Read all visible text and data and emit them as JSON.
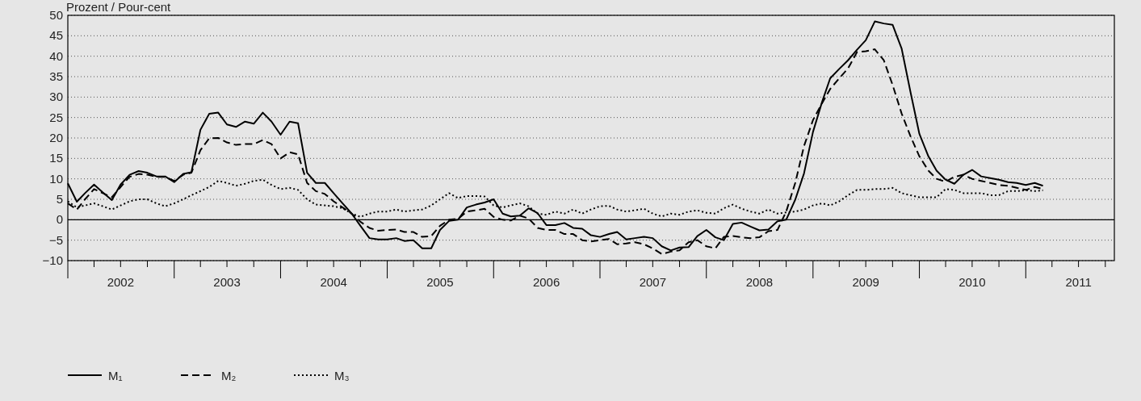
{
  "chart_data": {
    "type": "line",
    "ylabel": "Prozent / Pour-cent",
    "x": [
      "2002-01",
      "2002-02",
      "2002-03",
      "2002-04",
      "2002-05",
      "2002-06",
      "2002-07",
      "2002-08",
      "2002-09",
      "2002-10",
      "2002-11",
      "2002-12",
      "2003-01",
      "2003-02",
      "2003-03",
      "2003-04",
      "2003-05",
      "2003-06",
      "2003-07",
      "2003-08",
      "2003-09",
      "2003-10",
      "2003-11",
      "2003-12",
      "2004-01",
      "2004-02",
      "2004-03",
      "2004-04",
      "2004-05",
      "2004-06",
      "2004-07",
      "2004-08",
      "2004-09",
      "2004-10",
      "2004-11",
      "2004-12",
      "2005-01",
      "2005-02",
      "2005-03",
      "2005-04",
      "2005-05",
      "2005-06",
      "2005-07",
      "2005-08",
      "2005-09",
      "2005-10",
      "2005-11",
      "2005-12",
      "2006-01",
      "2006-02",
      "2006-03",
      "2006-04",
      "2006-05",
      "2006-06",
      "2006-07",
      "2006-08",
      "2006-09",
      "2006-10",
      "2006-11",
      "2006-12",
      "2007-01",
      "2007-02",
      "2007-03",
      "2007-04",
      "2007-05",
      "2007-06",
      "2007-07",
      "2007-08",
      "2007-09",
      "2007-10",
      "2007-11",
      "2007-12",
      "2008-01",
      "2008-02",
      "2008-03",
      "2008-04",
      "2008-05",
      "2008-06",
      "2008-07",
      "2008-08",
      "2008-09",
      "2008-10",
      "2008-11",
      "2008-12",
      "2009-01",
      "2009-02",
      "2009-03",
      "2009-04",
      "2009-05",
      "2009-06",
      "2009-07",
      "2009-08",
      "2009-09",
      "2009-10",
      "2009-11",
      "2009-12",
      "2010-01",
      "2010-02",
      "2010-03",
      "2010-04",
      "2010-05",
      "2010-06",
      "2010-07",
      "2010-08",
      "2010-09",
      "2010-10",
      "2010-11",
      "2010-12",
      "2011-01",
      "2011-02",
      "2011-03"
    ],
    "series": [
      {
        "name": "M₁",
        "color": "#000000",
        "line_style": "solid",
        "values": [
          8.9,
          4.4,
          6.5,
          8.6,
          6.7,
          4.8,
          8.6,
          11,
          11.9,
          11.5,
          10.6,
          10.6,
          9.2,
          11.2,
          11.6,
          22,
          25.9,
          26.2,
          23.3,
          22.7,
          24,
          23.5,
          26.2,
          24,
          20.8,
          24,
          23.6,
          11.5,
          9,
          9,
          6.5,
          4,
          1.5,
          -1.5,
          -4.5,
          -4.8,
          -4.8,
          -4.5,
          -5.2,
          -5,
          -7,
          -7,
          -2.5,
          -0.3,
          0,
          3,
          3.7,
          4.2,
          5,
          1.5,
          0.8,
          1,
          2.8,
          1.6,
          -1.3,
          -1.3,
          -0.8,
          -2,
          -2.2,
          -3.8,
          -4.2,
          -3.5,
          -3,
          -4.8,
          -4.5,
          -4.2,
          -4.5,
          -6.5,
          -7.5,
          -6.8,
          -6.7,
          -4,
          -2.5,
          -4.3,
          -5,
          -1,
          -0.7,
          -1.7,
          -2.6,
          -2.4,
          -0.4,
          0,
          4.9,
          11.3,
          21.5,
          28.8,
          34.6,
          36.9,
          39,
          41.6,
          43.9,
          48.5,
          48,
          47.7,
          41.9,
          31.4,
          21,
          15.5,
          12,
          9.8,
          8.8,
          11,
          12.2,
          10.6,
          10.2,
          9.8,
          9.2,
          9,
          8.5,
          9,
          8.3
        ]
      },
      {
        "name": "M₂",
        "color": "#000000",
        "line_style": "dashed",
        "values": [
          4,
          2.5,
          5,
          7.5,
          6.5,
          5.5,
          8,
          10.5,
          11.2,
          11,
          10.5,
          10.5,
          9.5,
          11,
          11.5,
          17,
          19.9,
          20,
          18.9,
          18.3,
          18.5,
          18.5,
          19.5,
          18.5,
          15,
          16.5,
          16,
          9,
          7,
          6.3,
          4.5,
          3,
          1.5,
          -0.5,
          -2,
          -2.7,
          -2.5,
          -2.4,
          -3,
          -3,
          -4.2,
          -4,
          -1.5,
          0,
          0.2,
          2,
          2.3,
          2.7,
          0.7,
          0,
          -0.2,
          1,
          0.3,
          -2,
          -2.5,
          -2.5,
          -3.5,
          -3.5,
          -5,
          -5.3,
          -5,
          -4.7,
          -6,
          -5.8,
          -5.5,
          -6,
          -7,
          -8.4,
          -7.8,
          -7.5,
          -5.5,
          -5,
          -6.5,
          -7,
          -4.2,
          -4,
          -4.3,
          -4.5,
          -4.3,
          -2.8,
          -2.5,
          2,
          9,
          18,
          24.4,
          28.5,
          32,
          34.6,
          37,
          41,
          41.2,
          41.7,
          39,
          33,
          26,
          20.5,
          15.5,
          12,
          10,
          9.3,
          10.5,
          11,
          10,
          9.5,
          9,
          8.5,
          8.3,
          7.8,
          7.3,
          8,
          7.5
        ]
      },
      {
        "name": "M₃",
        "color": "#000000",
        "line_style": "dotted",
        "values": [
          4.5,
          3,
          3.5,
          4,
          3.3,
          2.5,
          3.5,
          4.5,
          5,
          5,
          4,
          3.3,
          4,
          5,
          6,
          7,
          8,
          9.5,
          9,
          8.3,
          8.8,
          9.5,
          9.8,
          8.5,
          7.5,
          7.8,
          7.3,
          5,
          3.7,
          3.5,
          3.3,
          2.8,
          1.5,
          0.7,
          1.5,
          2,
          2,
          2.5,
          2,
          2.3,
          2.5,
          3.5,
          5,
          6.5,
          5.3,
          5.8,
          5.8,
          5.7,
          3.5,
          3,
          3.5,
          4,
          3.3,
          1.5,
          1.2,
          2,
          1.5,
          2.5,
          1.5,
          2.5,
          3.3,
          3.4,
          2.5,
          2,
          2.3,
          2.7,
          1.5,
          0.8,
          1.5,
          1.2,
          2,
          2.3,
          1.7,
          1.5,
          2.8,
          3.7,
          2.7,
          2,
          1.5,
          2.5,
          1.5,
          1.8,
          2,
          2.5,
          3.5,
          4,
          3.5,
          4.5,
          6,
          7.3,
          7.3,
          7.5,
          7.5,
          7.8,
          6.5,
          6,
          5.5,
          5.5,
          5.5,
          7.5,
          7.3,
          6.5,
          6.5,
          6.5,
          6,
          6,
          7,
          7,
          7.2,
          7,
          7.2
        ]
      }
    ],
    "xlim": [
      "2002-01",
      "2011-11"
    ],
    "xticks": [
      {
        "value": "2002-01",
        "label": null
      },
      {
        "value": "2002-04",
        "label": null
      },
      {
        "value": "2002-07",
        "label": "2002"
      },
      {
        "value": "2002-10",
        "label": null
      },
      {
        "value": "2003-01",
        "label": null
      },
      {
        "value": "2003-04",
        "label": null
      },
      {
        "value": "2003-07",
        "label": "2003"
      },
      {
        "value": "2003-10",
        "label": null
      },
      {
        "value": "2004-01",
        "label": null
      },
      {
        "value": "2004-04",
        "label": null
      },
      {
        "value": "2004-07",
        "label": "2004"
      },
      {
        "value": "2004-10",
        "label": null
      },
      {
        "value": "2005-01",
        "label": null
      },
      {
        "value": "2005-04",
        "label": null
      },
      {
        "value": "2005-07",
        "label": "2005"
      },
      {
        "value": "2005-10",
        "label": null
      },
      {
        "value": "2006-01",
        "label": null
      },
      {
        "value": "2006-04",
        "label": null
      },
      {
        "value": "2006-07",
        "label": "2006"
      },
      {
        "value": "2006-10",
        "label": null
      },
      {
        "value": "2007-01",
        "label": null
      },
      {
        "value": "2007-04",
        "label": null
      },
      {
        "value": "2007-07",
        "label": "2007"
      },
      {
        "value": "2007-10",
        "label": null
      },
      {
        "value": "2008-01",
        "label": null
      },
      {
        "value": "2008-04",
        "label": null
      },
      {
        "value": "2008-07",
        "label": "2008"
      },
      {
        "value": "2008-10",
        "label": null
      },
      {
        "value": "2009-01",
        "label": null
      },
      {
        "value": "2009-04",
        "label": null
      },
      {
        "value": "2009-07",
        "label": "2009"
      },
      {
        "value": "2009-10",
        "label": null
      },
      {
        "value": "2010-01",
        "label": null
      },
      {
        "value": "2010-04",
        "label": null
      },
      {
        "value": "2010-07",
        "label": "2010"
      },
      {
        "value": "2010-10",
        "label": null
      },
      {
        "value": "2011-01",
        "label": null
      },
      {
        "value": "2011-04",
        "label": null
      },
      {
        "value": "2011-07",
        "label": "2011"
      },
      {
        "value": "2011-10",
        "label": null
      }
    ],
    "ylim": [
      -10,
      50
    ],
    "yticks": [
      -10,
      -5,
      0,
      5,
      10,
      15,
      20,
      25,
      30,
      35,
      40,
      45,
      50
    ],
    "ref_lines": [
      {
        "axis": "y",
        "value": 0,
        "color": "#000000"
      }
    ],
    "grid": "y",
    "legend": "bottom left",
    "marker": "none"
  }
}
